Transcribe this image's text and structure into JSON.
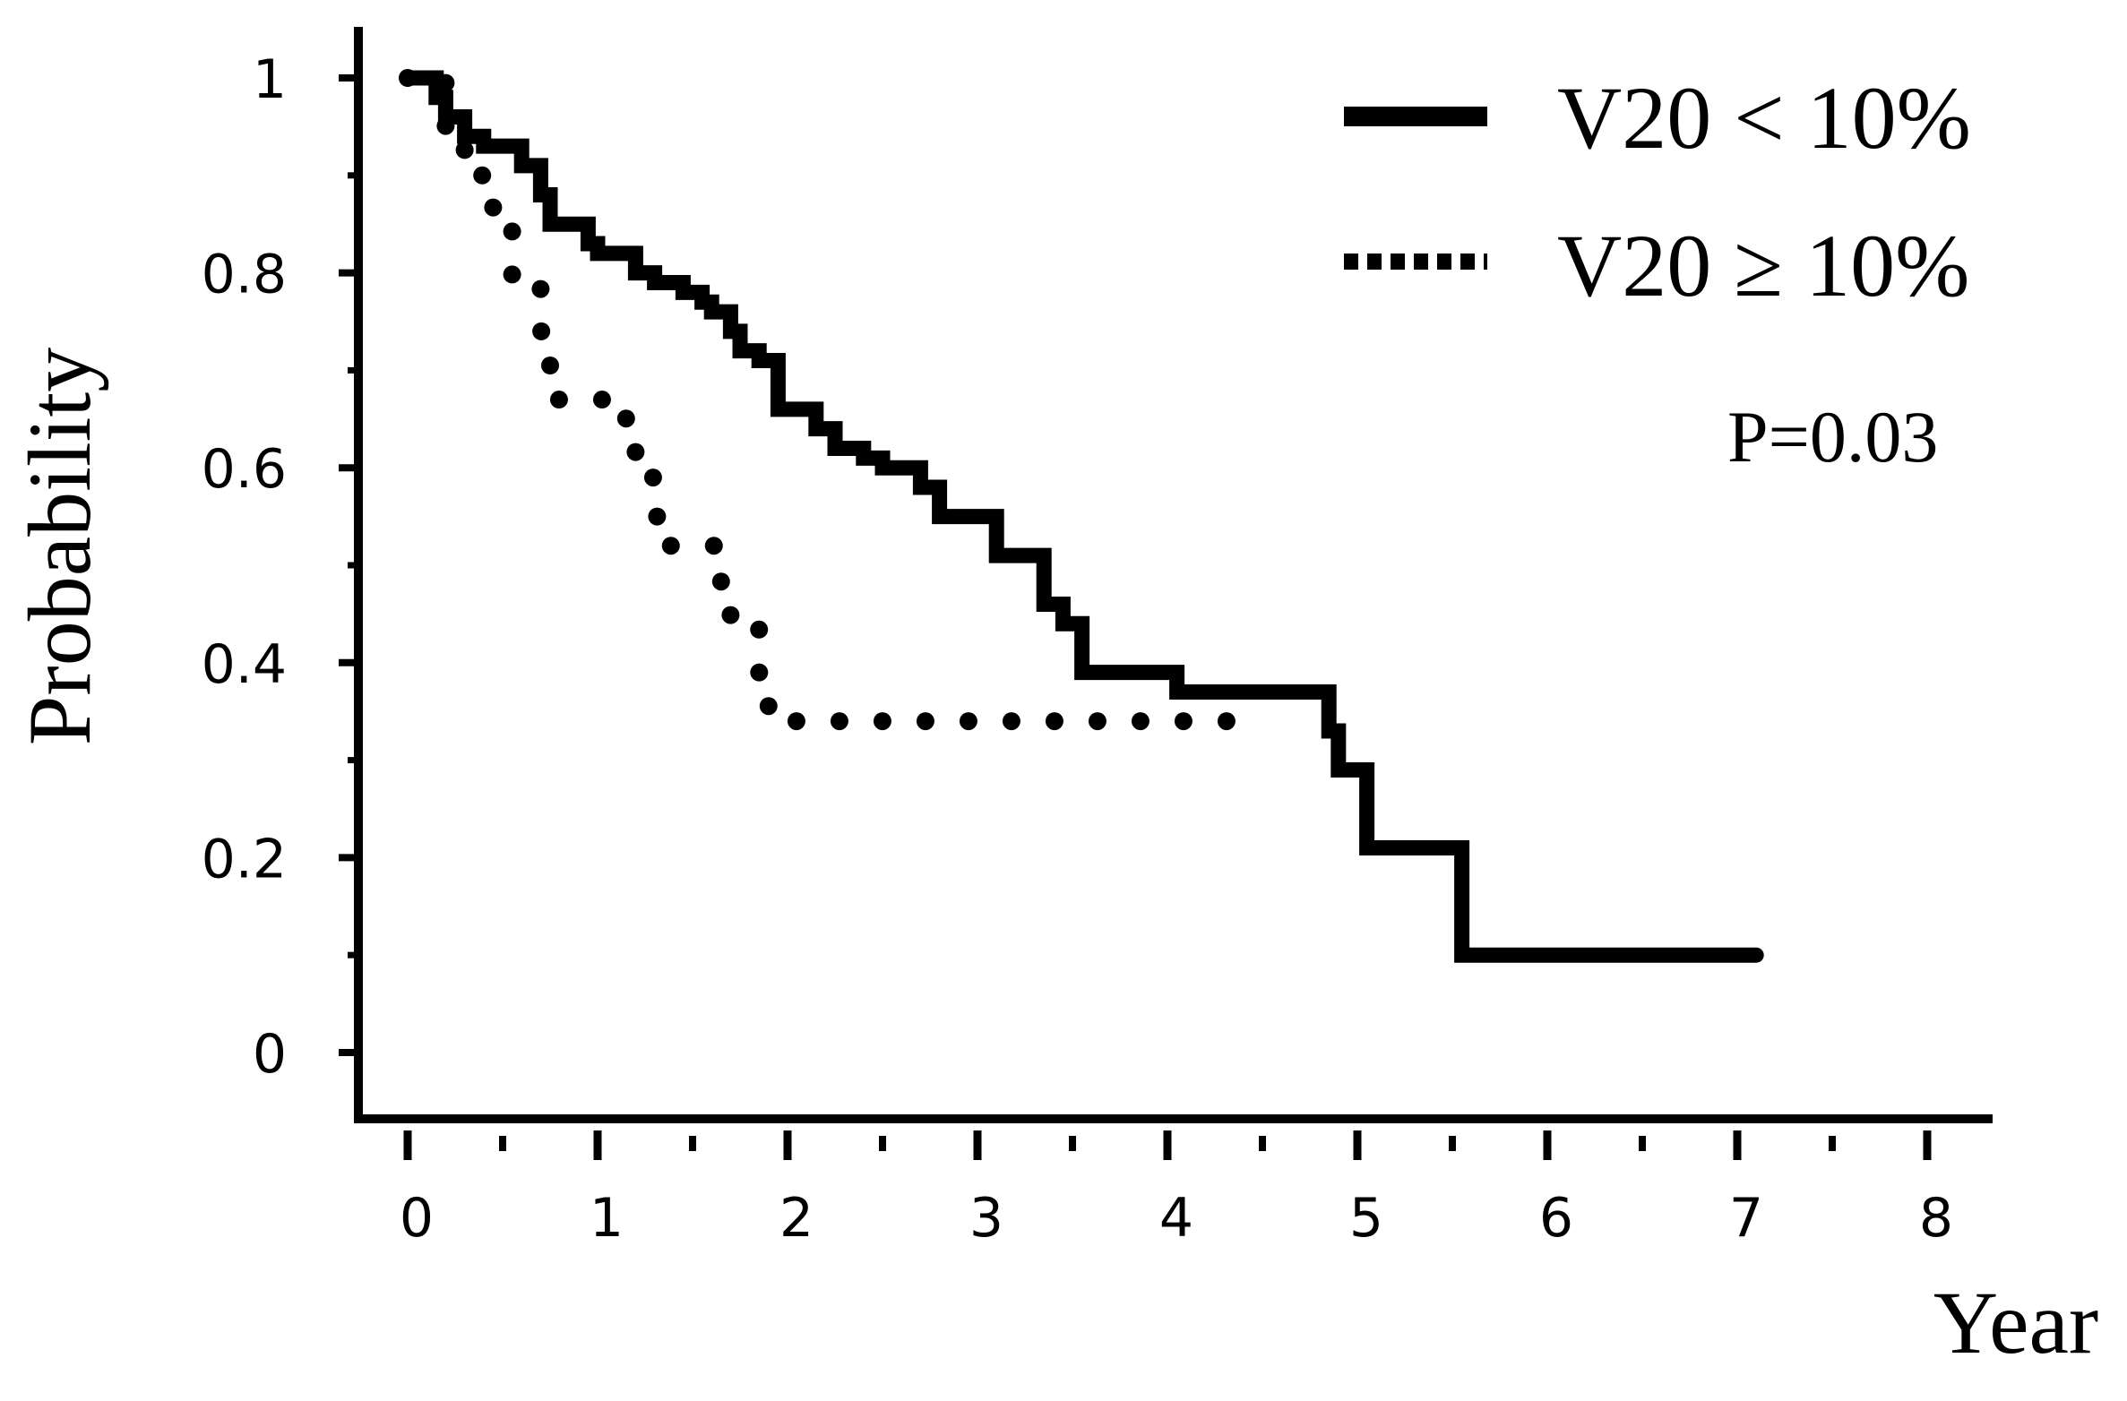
{
  "chart_data": {
    "type": "line",
    "title": "",
    "xlabel": "Year",
    "ylabel": "Probability",
    "xlim": [
      0,
      8
    ],
    "ylim": [
      0,
      1
    ],
    "x_ticks": [
      "0",
      "1",
      "2",
      "3",
      "4",
      "5",
      "6",
      "7",
      "8"
    ],
    "y_ticks": [
      "0",
      "0.2",
      "0.4",
      "0.6",
      "0.8",
      "1"
    ],
    "grid": false,
    "legend_position": "top-right",
    "annotation": "P=0.03",
    "series": [
      {
        "name": "V20 < 10%",
        "style": "solid",
        "steps": [
          [
            0,
            1.0
          ],
          [
            0.15,
            0.98
          ],
          [
            0.2,
            0.96
          ],
          [
            0.3,
            0.94
          ],
          [
            0.4,
            0.93
          ],
          [
            0.6,
            0.91
          ],
          [
            0.7,
            0.88
          ],
          [
            0.75,
            0.85
          ],
          [
            0.95,
            0.83
          ],
          [
            1.0,
            0.82
          ],
          [
            1.2,
            0.8
          ],
          [
            1.3,
            0.79
          ],
          [
            1.45,
            0.78
          ],
          [
            1.55,
            0.77
          ],
          [
            1.6,
            0.76
          ],
          [
            1.7,
            0.74
          ],
          [
            1.75,
            0.72
          ],
          [
            1.85,
            0.71
          ],
          [
            1.95,
            0.66
          ],
          [
            2.15,
            0.64
          ],
          [
            2.25,
            0.62
          ],
          [
            2.4,
            0.61
          ],
          [
            2.5,
            0.6
          ],
          [
            2.7,
            0.58
          ],
          [
            2.8,
            0.55
          ],
          [
            3.1,
            0.51
          ],
          [
            3.35,
            0.46
          ],
          [
            3.45,
            0.44
          ],
          [
            3.55,
            0.39
          ],
          [
            4.05,
            0.37
          ],
          [
            4.85,
            0.33
          ],
          [
            4.9,
            0.29
          ],
          [
            5.05,
            0.21
          ],
          [
            5.55,
            0.1
          ],
          [
            7.1,
            0.1
          ]
        ]
      },
      {
        "name": "V20 ≥ 10%",
        "style": "dotted",
        "steps": [
          [
            0,
            1.0
          ],
          [
            0.2,
            0.95
          ],
          [
            0.3,
            0.9
          ],
          [
            0.45,
            0.85
          ],
          [
            0.55,
            0.79
          ],
          [
            0.7,
            0.74
          ],
          [
            0.75,
            0.67
          ],
          [
            1.15,
            0.63
          ],
          [
            1.2,
            0.59
          ],
          [
            1.3,
            0.55
          ],
          [
            1.35,
            0.52
          ],
          [
            1.65,
            0.48
          ],
          [
            1.7,
            0.44
          ],
          [
            1.85,
            0.39
          ],
          [
            1.9,
            0.34
          ],
          [
            4.5,
            0.34
          ]
        ]
      }
    ]
  }
}
